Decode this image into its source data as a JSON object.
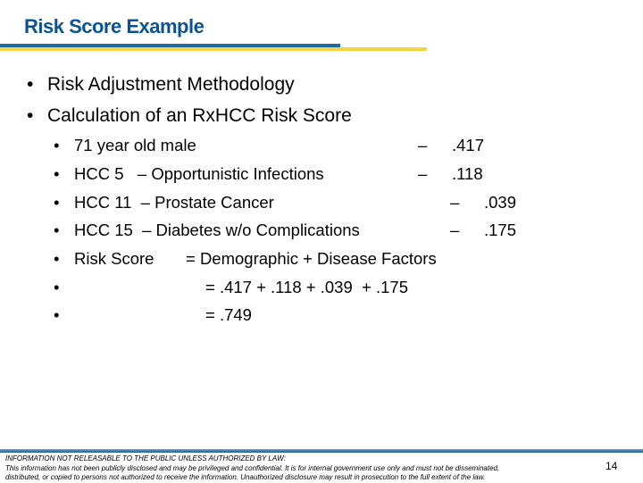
{
  "title": "Risk Score Example",
  "bullets": [
    {
      "text": "Risk Adjustment Methodology"
    },
    {
      "text": "Calculation of an RxHCC Risk Score"
    }
  ],
  "sub_bullets": [
    {
      "label": "71 year old male",
      "dash": "–",
      "value": ".417"
    },
    {
      "label": "HCC 5   – Opportunistic Infections",
      "dash": "–",
      "value": ".118"
    },
    {
      "label": "HCC 11  – Prostate Cancer",
      "dash": "–",
      "value": ".039"
    },
    {
      "label": "HCC 15  – Diabetes w/o Complications",
      "dash": "–",
      "value": ".175"
    },
    {
      "label": "Risk Score",
      "formula": "= Demographic + Disease Factors"
    },
    {
      "formula": "= .417 + .118 + .039  + .175"
    },
    {
      "formula": "= .749"
    }
  ],
  "bullet_char": "•",
  "footer": {
    "line1": "INFORMATION NOT RELEASABLE TO THE PUBLIC UNLESS AUTHORIZED BY LAW:",
    "line2": "This information has not been publicly disclosed and may be privileged and confidential.  It is for internal government use only and must not be disseminated,",
    "line3": "distributed, or copied to persons not authorized to receive the information.  Unauthorized disclosure may result in prosecution to the full extent of the law."
  },
  "page_number": "14",
  "colors": {
    "title": "#0b5394",
    "accent_blue": "#1f6a9e",
    "accent_yellow": "#f5d442"
  }
}
